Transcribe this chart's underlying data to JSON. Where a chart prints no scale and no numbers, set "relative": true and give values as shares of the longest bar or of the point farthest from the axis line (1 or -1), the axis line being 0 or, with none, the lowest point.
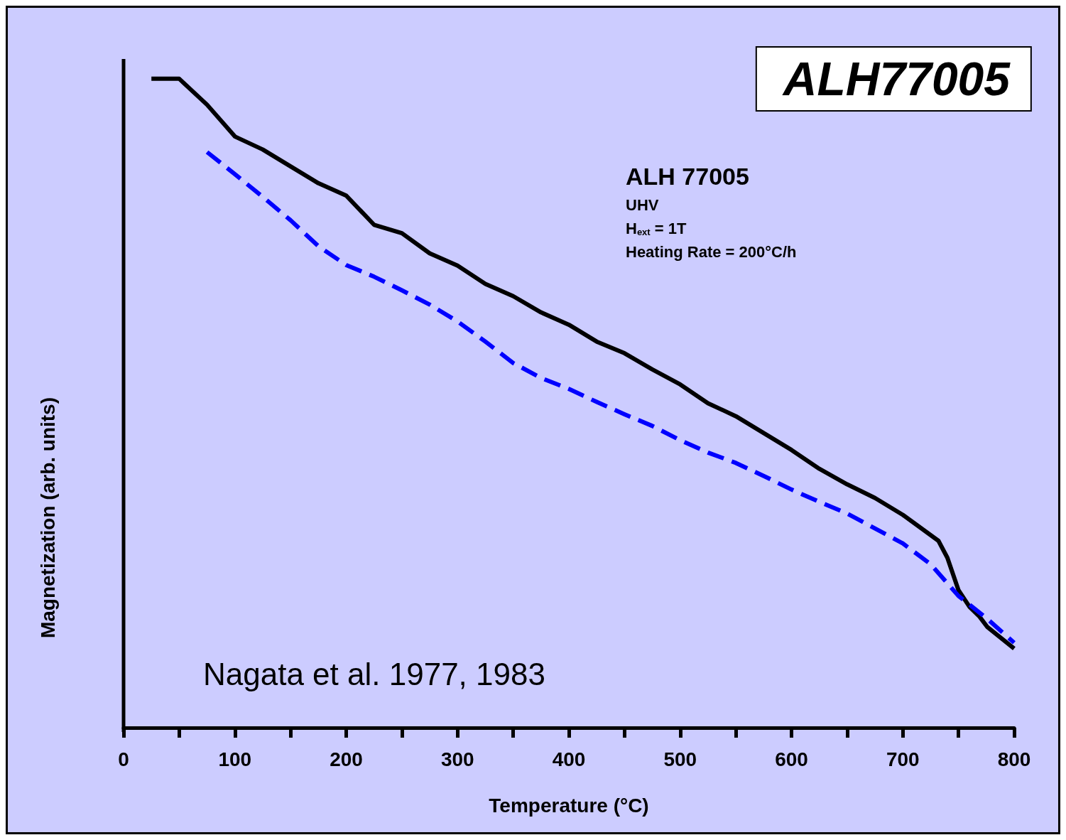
{
  "chart_data": {
    "type": "line",
    "title": "ALH77005",
    "xlabel": "Temperature (°C)",
    "ylabel": "Magnetization (arb. units)",
    "relative": true,
    "annotations": [
      "ALH 77005",
      "UHV",
      "H$_{ext}$ = 1T",
      "Heating Rate = 200°C/h",
      "Nagata et al. 1977, 1983"
    ],
    "xlim": [
      0,
      800
    ],
    "xticks": [
      0,
      {
        "value": 50,
        "label": null
      },
      100,
      {
        "value": 150,
        "label": null
      },
      200,
      {
        "value": 250,
        "label": null
      },
      300,
      {
        "value": 350,
        "label": null
      },
      400,
      {
        "value": 450,
        "label": null
      },
      500,
      {
        "value": 550,
        "label": null
      },
      600,
      {
        "value": 650,
        "label": null
      },
      700,
      {
        "value": 750,
        "label": null
      },
      800
    ],
    "grid": false,
    "marker": "none",
    "series": [
      {
        "color": "#000000",
        "line_style": "solid",
        "x": [
          25,
          50,
          75,
          100,
          125,
          150,
          175,
          200,
          225,
          250,
          275,
          300,
          325,
          350,
          375,
          400,
          425,
          450,
          475,
          500,
          525,
          550,
          575,
          600,
          625,
          650,
          675,
          700,
          732,
          740,
          750,
          760,
          769,
          776,
          800
        ],
        "values": [
          1.0,
          1.0,
          0.96,
          0.911,
          0.891,
          0.865,
          0.839,
          0.82,
          0.775,
          0.762,
          0.731,
          0.712,
          0.684,
          0.665,
          0.64,
          0.621,
          0.595,
          0.577,
          0.552,
          0.529,
          0.5,
          0.48,
          0.454,
          0.428,
          0.399,
          0.375,
          0.354,
          0.328,
          0.288,
          0.262,
          0.212,
          0.186,
          0.171,
          0.155,
          0.122
        ]
      },
      {
        "color": "#0000ff",
        "line_style": "dashed",
        "x": [
          75,
          100,
          125,
          150,
          175,
          200,
          225,
          250,
          275,
          300,
          325,
          350,
          375,
          400,
          425,
          450,
          475,
          500,
          525,
          550,
          575,
          600,
          625,
          650,
          675,
          700,
          725,
          750,
          775,
          800
        ],
        "values": [
          0.887,
          0.853,
          0.818,
          0.782,
          0.742,
          0.713,
          0.695,
          0.674,
          0.652,
          0.626,
          0.595,
          0.562,
          0.539,
          0.522,
          0.502,
          0.483,
          0.465,
          0.443,
          0.424,
          0.408,
          0.388,
          0.367,
          0.348,
          0.33,
          0.307,
          0.284,
          0.252,
          0.203,
          0.169,
          0.131
        ]
      }
    ]
  }
}
